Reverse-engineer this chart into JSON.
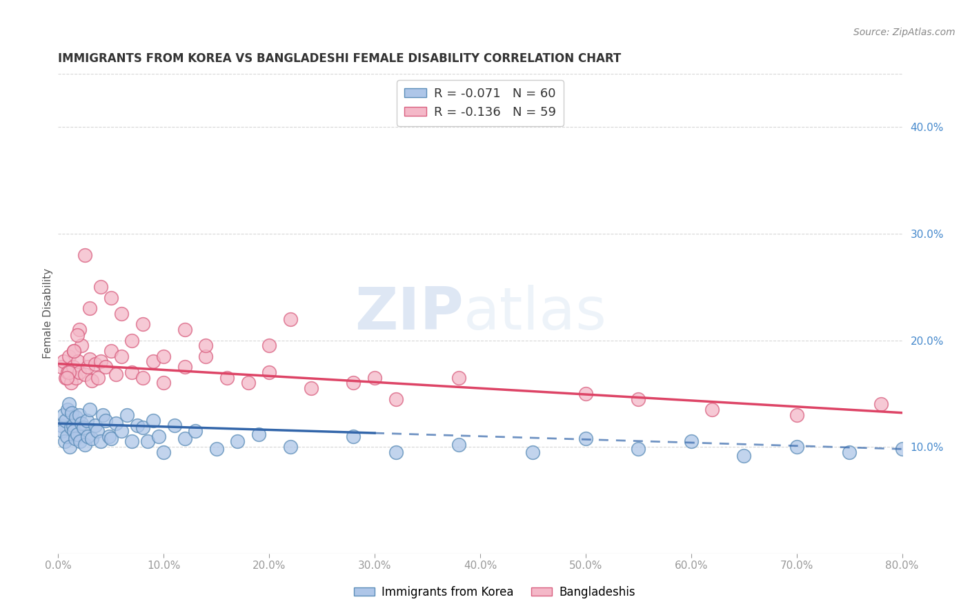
{
  "title": "IMMIGRANTS FROM KOREA VS BANGLADESHI FEMALE DISABILITY CORRELATION CHART",
  "source": "Source: ZipAtlas.com",
  "ylabel": "Female Disability",
  "right_yticks": [
    10.0,
    20.0,
    30.0,
    40.0
  ],
  "right_ytick_labels": [
    "10.0%",
    "20.0%",
    "30.0%",
    "40.0%"
  ],
  "legend_series_0": "R = -0.071   N = 60",
  "legend_series_1": "R = -0.136   N = 59",
  "korea_color": "#aec6e8",
  "korea_edge": "#5b8db8",
  "bangla_color": "#f4b8c8",
  "bangla_edge": "#d96080",
  "korea_line_color": "#3366aa",
  "bangla_line_color": "#dd4466",
  "watermark_zip": "ZIP",
  "watermark_atlas": "atlas",
  "xlim": [
    0,
    80
  ],
  "ylim": [
    0,
    45
  ],
  "title_fontsize": 12,
  "background_color": "#ffffff",
  "grid_color": "#cccccc",
  "korea_scatter_x": [
    0.3,
    0.4,
    0.5,
    0.6,
    0.7,
    0.8,
    0.9,
    1.0,
    1.1,
    1.2,
    1.3,
    1.4,
    1.5,
    1.6,
    1.7,
    1.8,
    2.0,
    2.1,
    2.2,
    2.4,
    2.5,
    2.7,
    2.8,
    3.0,
    3.2,
    3.5,
    3.7,
    4.0,
    4.2,
    4.5,
    4.8,
    5.0,
    5.5,
    6.0,
    6.5,
    7.0,
    7.5,
    8.0,
    8.5,
    9.0,
    9.5,
    10.0,
    11.0,
    12.0,
    13.0,
    15.0,
    17.0,
    19.0,
    22.0,
    28.0,
    32.0,
    38.0,
    45.0,
    50.0,
    55.0,
    60.0,
    65.0,
    70.0,
    75.0,
    80.0
  ],
  "korea_scatter_y": [
    12.0,
    11.5,
    13.0,
    10.5,
    12.5,
    11.0,
    13.5,
    14.0,
    10.0,
    11.8,
    13.2,
    12.0,
    11.5,
    10.8,
    12.8,
    11.2,
    13.0,
    10.5,
    12.2,
    11.8,
    10.2,
    12.5,
    11.0,
    13.5,
    10.8,
    12.0,
    11.5,
    10.5,
    13.0,
    12.5,
    11.0,
    10.8,
    12.2,
    11.5,
    13.0,
    10.5,
    12.0,
    11.8,
    10.5,
    12.5,
    11.0,
    9.5,
    12.0,
    10.8,
    11.5,
    9.8,
    10.5,
    11.2,
    10.0,
    11.0,
    9.5,
    10.2,
    9.5,
    10.8,
    9.8,
    10.5,
    9.2,
    10.0,
    9.5,
    9.8
  ],
  "bangla_scatter_x": [
    0.3,
    0.5,
    0.7,
    0.9,
    1.0,
    1.2,
    1.4,
    1.5,
    1.7,
    1.9,
    2.0,
    2.2,
    2.5,
    2.8,
    3.0,
    3.2,
    3.5,
    3.8,
    4.0,
    4.5,
    5.0,
    5.5,
    6.0,
    7.0,
    8.0,
    9.0,
    10.0,
    12.0,
    14.0,
    16.0,
    18.0,
    20.0,
    24.0,
    28.0,
    32.0,
    38.0,
    20.0,
    22.0,
    30.0,
    50.0,
    55.0,
    62.0,
    70.0,
    78.0,
    10.0,
    12.0,
    14.0,
    5.0,
    6.0,
    7.0,
    8.0,
    3.0,
    4.0,
    2.5,
    2.0,
    1.8,
    1.5,
    1.0,
    0.8
  ],
  "bangla_scatter_y": [
    17.5,
    18.0,
    16.5,
    17.0,
    18.5,
    16.0,
    17.5,
    19.0,
    16.5,
    18.0,
    17.0,
    19.5,
    16.8,
    17.5,
    18.2,
    16.2,
    17.8,
    16.5,
    18.0,
    17.5,
    19.0,
    16.8,
    18.5,
    17.0,
    16.5,
    18.0,
    16.0,
    17.5,
    18.5,
    16.5,
    16.0,
    17.0,
    15.5,
    16.0,
    14.5,
    16.5,
    19.5,
    22.0,
    16.5,
    15.0,
    14.5,
    13.5,
    13.0,
    14.0,
    18.5,
    21.0,
    19.5,
    24.0,
    22.5,
    20.0,
    21.5,
    23.0,
    25.0,
    28.0,
    21.0,
    20.5,
    19.0,
    17.0,
    16.5
  ],
  "korea_solid_end": 30.0,
  "bangla_line_start_x": 0,
  "bangla_line_end_x": 80,
  "bangla_line_start_y": 17.8,
  "bangla_line_end_y": 13.2,
  "korea_line_start_x": 0,
  "korea_line_start_y": 12.2,
  "korea_solid_end_y": 11.3,
  "korea_dashed_end_x": 80,
  "korea_dashed_end_y": 9.8
}
